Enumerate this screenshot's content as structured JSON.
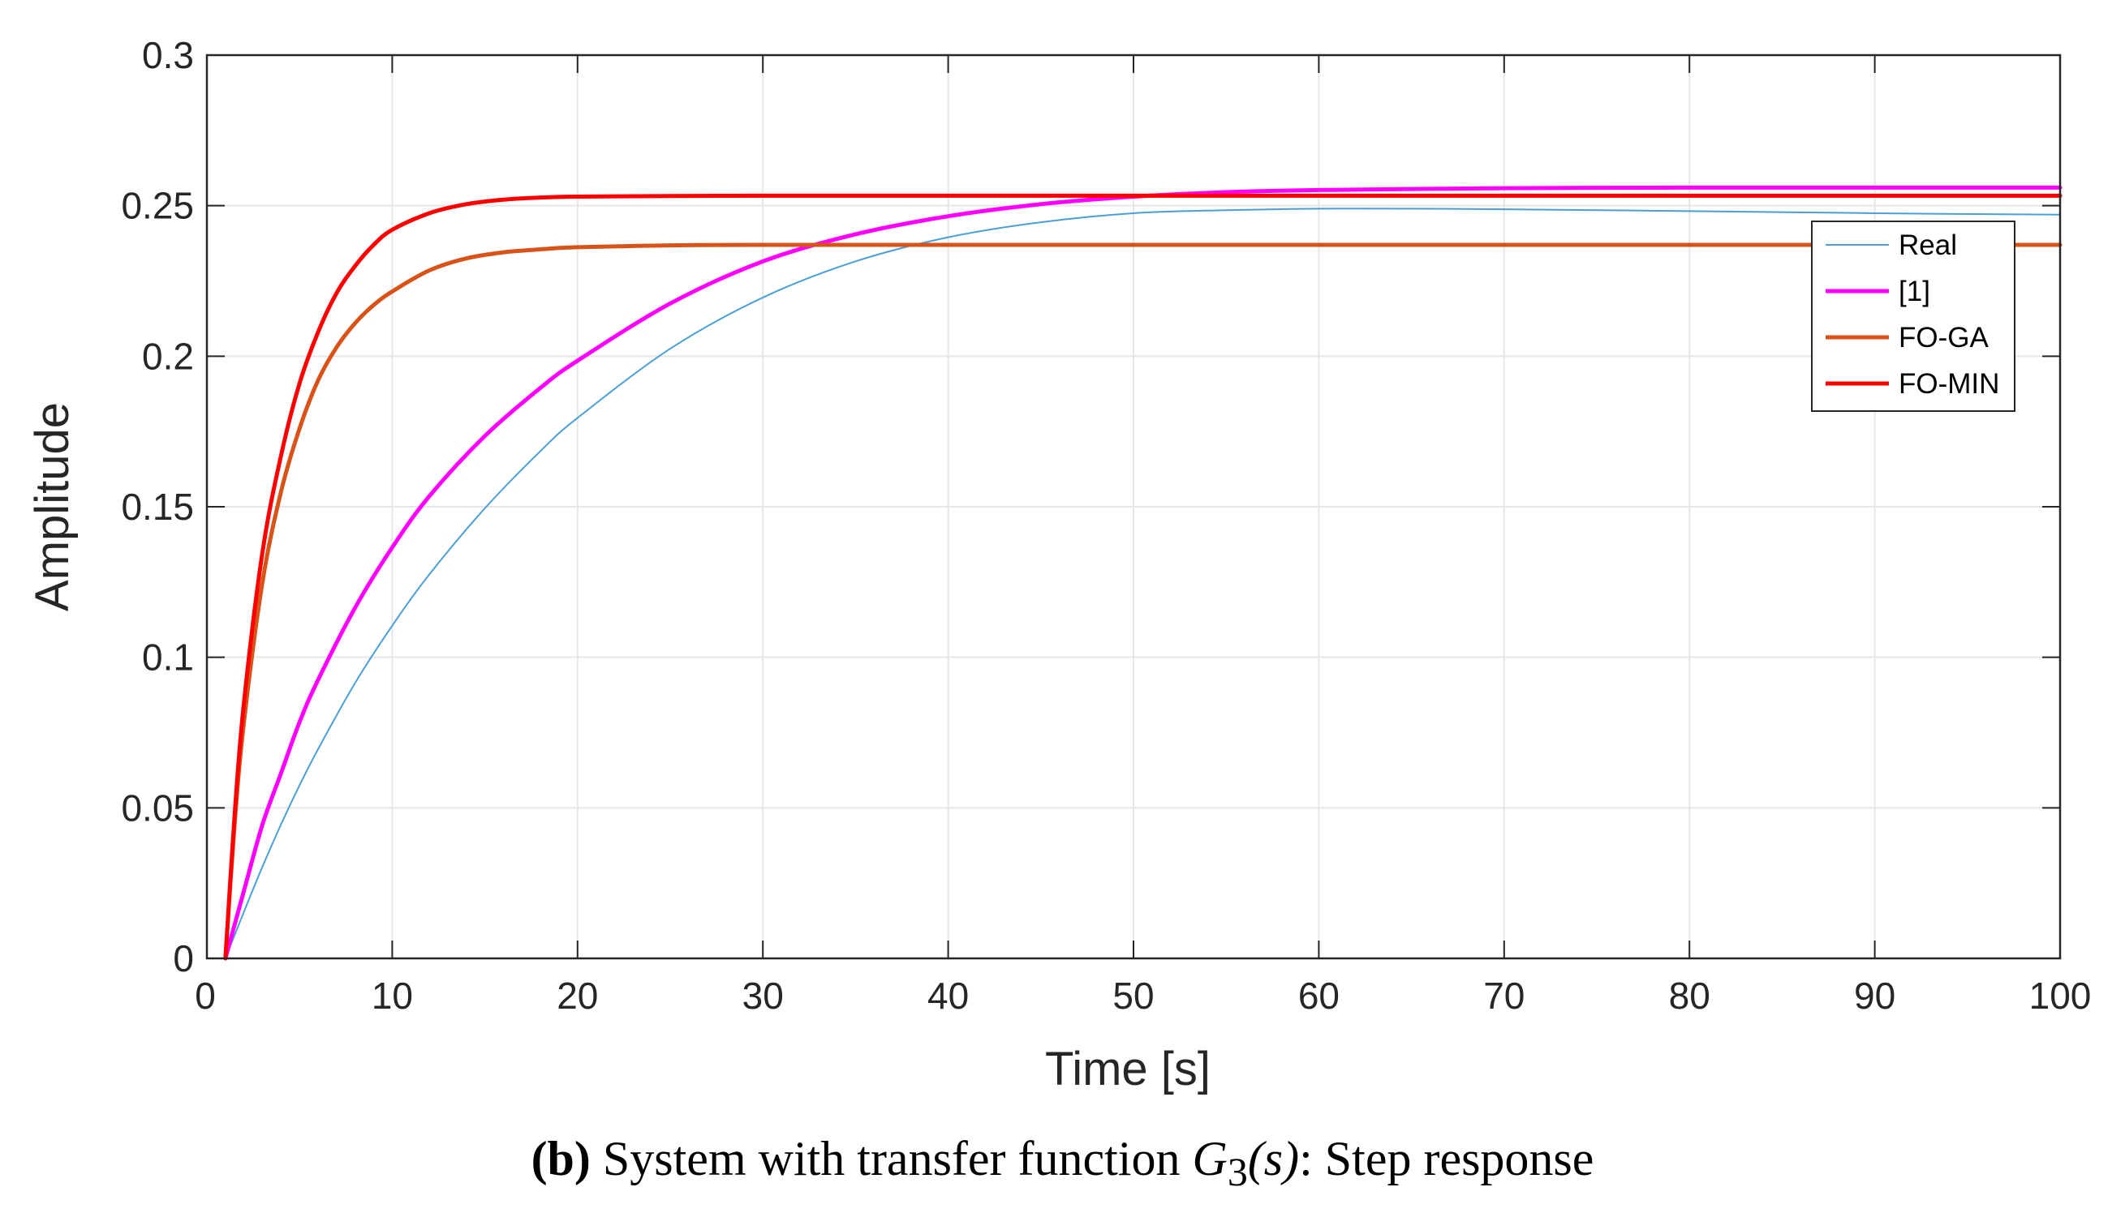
{
  "chart_data": {
    "type": "line",
    "title": "",
    "xlabel": "Time [s]",
    "ylabel": "Amplitude",
    "xlim": [
      0,
      100
    ],
    "ylim": [
      0,
      0.3
    ],
    "grid": true,
    "x_ticks": [
      0,
      10,
      20,
      30,
      40,
      50,
      60,
      70,
      80,
      90,
      100
    ],
    "x_tick_labels": [
      "0",
      "10",
      "20",
      "30",
      "40",
      "50",
      "60",
      "70",
      "80",
      "90",
      "100"
    ],
    "y_ticks": [
      0,
      0.05,
      0.1,
      0.15,
      0.2,
      0.25,
      0.3
    ],
    "y_tick_labels": [
      "0",
      "0.05",
      "0.1",
      "0.15",
      "0.2",
      "0.25",
      "0.3"
    ],
    "legend_position": "top-right",
    "series": [
      {
        "name": "Real",
        "color": "#4a9fd6",
        "width": 2,
        "x": [
          1,
          2,
          3,
          4,
          5,
          6,
          8,
          10,
          12,
          15,
          18,
          20,
          25,
          30,
          35,
          40,
          45,
          50,
          55,
          60,
          65,
          70,
          80,
          90,
          100
        ],
        "y": [
          0,
          0.0155,
          0.0305,
          0.0445,
          0.0575,
          0.0695,
          0.0915,
          0.1105,
          0.1275,
          0.1495,
          0.1685,
          0.1795,
          0.2025,
          0.2195,
          0.2315,
          0.2395,
          0.2445,
          0.2475,
          0.2485,
          0.249,
          0.249,
          0.2488,
          0.2482,
          0.2475,
          0.247
        ]
      },
      {
        "name": "[1]",
        "color": "#ff00ff",
        "width": 5,
        "x": [
          1,
          2,
          3,
          4,
          5,
          6,
          8,
          10,
          12,
          15,
          18,
          20,
          25,
          30,
          35,
          40,
          45,
          50,
          55,
          60,
          70,
          80,
          90,
          100
        ],
        "y": [
          0,
          0.0225,
          0.0445,
          0.0615,
          0.0785,
          0.0925,
          0.1165,
          0.1365,
          0.1535,
          0.1735,
          0.1895,
          0.1985,
          0.2175,
          0.2315,
          0.2405,
          0.2465,
          0.2505,
          0.253,
          0.2545,
          0.2552,
          0.2558,
          0.256,
          0.256,
          0.256
        ]
      },
      {
        "name": "FO-GA",
        "color": "#d95319",
        "width": 5,
        "x": [
          1,
          1.5,
          2,
          3,
          4,
          5,
          6,
          7,
          8,
          9,
          10,
          12,
          14,
          16,
          18,
          20,
          25,
          30,
          40,
          60,
          80,
          100
        ],
        "y": [
          0,
          0.045,
          0.0785,
          0.125,
          0.155,
          0.176,
          0.192,
          0.203,
          0.211,
          0.217,
          0.2215,
          0.2285,
          0.2325,
          0.2345,
          0.2355,
          0.2362,
          0.2368,
          0.237,
          0.237,
          0.237,
          0.237,
          0.237
        ]
      },
      {
        "name": "FO-MIN",
        "color": "#ff0000",
        "width": 5,
        "x": [
          1,
          1.5,
          2,
          3,
          4,
          5,
          6,
          7,
          8,
          9,
          10,
          12,
          14,
          16,
          18,
          20,
          25,
          30,
          40,
          60,
          80,
          100
        ],
        "y": [
          0,
          0.048,
          0.085,
          0.135,
          0.167,
          0.191,
          0.208,
          0.221,
          0.23,
          0.237,
          0.242,
          0.2475,
          0.2505,
          0.252,
          0.2527,
          0.253,
          0.2532,
          0.2533,
          0.2533,
          0.2533,
          0.2533,
          0.2533
        ]
      }
    ]
  },
  "caption": {
    "label": "(b)",
    "text_before": " System with transfer function ",
    "math_symbol": "G",
    "math_subscript": "3",
    "math_arg": "(s)",
    "text_after": ": Step response"
  }
}
